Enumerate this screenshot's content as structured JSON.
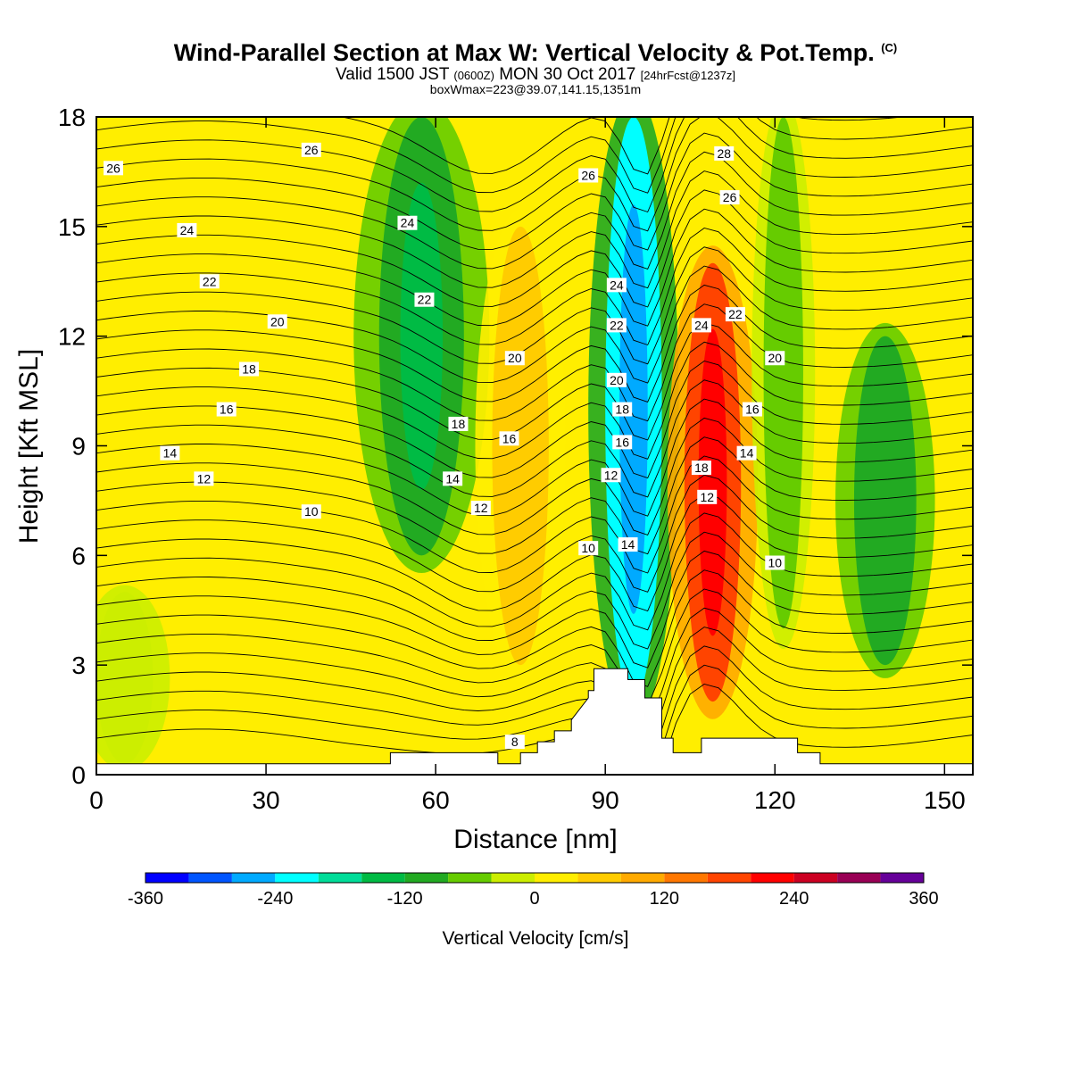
{
  "title": "Wind-Parallel Section at Max W: Vertical Velocity & Pot.Temp.",
  "title_mark": "(C)",
  "subtitle": {
    "valid": "Valid 1500 JST",
    "utc": "(0600Z)",
    "date": "MON 30 Oct 2017",
    "forecast": "[24hrFcst@1237z]"
  },
  "subtitle2": "boxWmax=223@39.07,141.15,1351m",
  "chart_data": {
    "type": "heatmap",
    "xlabel": "Distance [nm]",
    "ylabel": "Height [Kft MSL]",
    "xlim": [
      0,
      155
    ],
    "ylim": [
      0,
      18
    ],
    "xticks": [
      0,
      30,
      60,
      90,
      120,
      150
    ],
    "yticks": [
      0,
      3,
      6,
      9,
      12,
      15,
      18
    ],
    "colorbar": {
      "label": "Vertical Velocity [cm/s]",
      "min": -360,
      "max": 360,
      "ticks": [
        -360,
        -240,
        -120,
        0,
        120,
        240,
        360
      ],
      "colors": [
        "#0000ff",
        "#0055ff",
        "#00aaff",
        "#00ffff",
        "#00dd99",
        "#00bb44",
        "#22aa22",
        "#66cc00",
        "#ccee00",
        "#ffee00",
        "#ffcc00",
        "#ffaa00",
        "#ff7700",
        "#ff4400",
        "#ff0000",
        "#cc0022",
        "#990055",
        "#660099"
      ]
    },
    "series": [
      {
        "name": "Vertical Velocity",
        "cells": [
          {
            "x": [
              0,
              50
            ],
            "y": [
              0.3,
              18
            ],
            "value": 15
          },
          {
            "x": [
              0,
              10
            ],
            "y": [
              0.3,
              5
            ],
            "value": -15
          },
          {
            "x": [
              50,
              65
            ],
            "y": [
              6,
              18
            ],
            "value": -130
          },
          {
            "x": [
              70,
              80
            ],
            "y": [
              3,
              15
            ],
            "value": 60
          },
          {
            "x": [
              90,
              100
            ],
            "y": [
              2,
              18
            ],
            "value": -270
          },
          {
            "x": [
              104,
              114
            ],
            "y": [
              2,
              14
            ],
            "value": 230
          },
          {
            "x": [
              118,
              125
            ],
            "y": [
              4,
              18
            ],
            "value": -80
          },
          {
            "x": [
              134,
              145
            ],
            "y": [
              3,
              12
            ],
            "value": -110
          }
        ]
      }
    ],
    "contours": {
      "name": "Pot.Temp.",
      "labels": [
        "8",
        "10",
        "12",
        "14",
        "16",
        "18",
        "20",
        "22",
        "24",
        "26",
        "28"
      ]
    }
  }
}
